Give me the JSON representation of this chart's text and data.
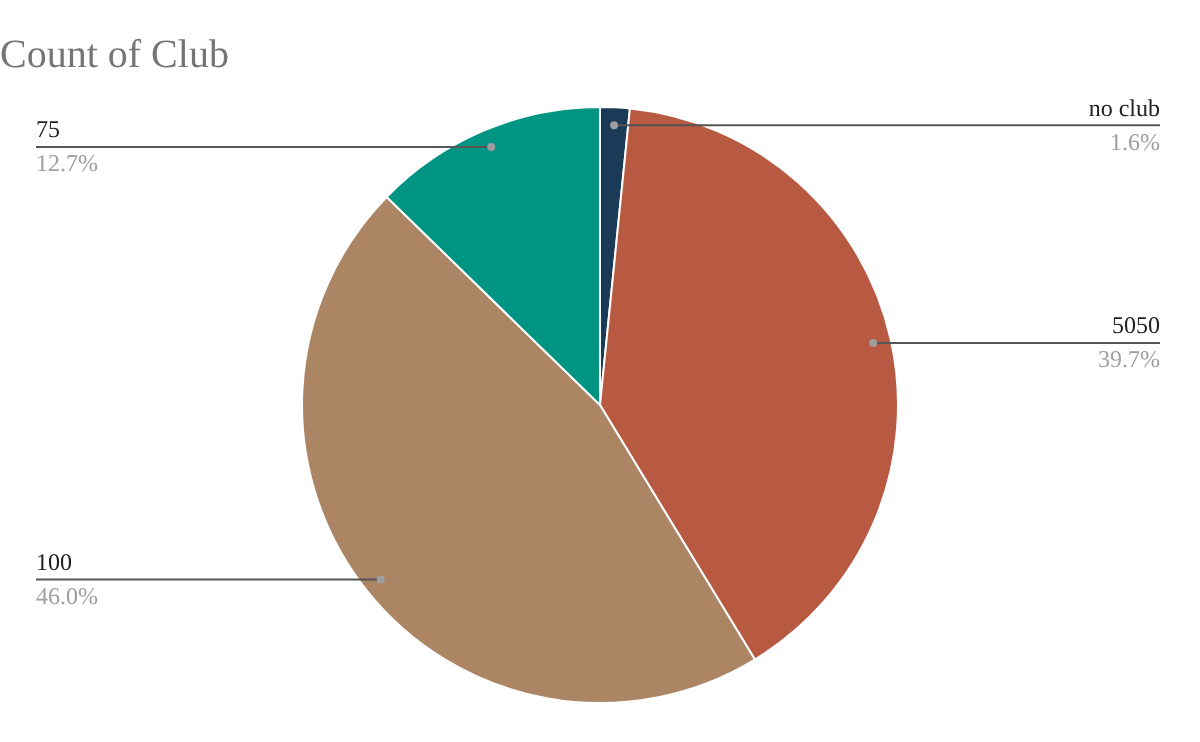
{
  "chart_data": {
    "type": "pie",
    "title": "Count of Club",
    "categories": [
      "no club",
      "5050",
      "100",
      "75"
    ],
    "values": [
      1.6,
      39.7,
      46.0,
      12.7
    ],
    "colors": [
      "#1b3a57",
      "#b85a42",
      "#ac8565",
      "#009483"
    ],
    "value_labels": [
      "1.6%",
      "39.7%",
      "46.0%",
      "12.7%"
    ],
    "legend": false
  }
}
